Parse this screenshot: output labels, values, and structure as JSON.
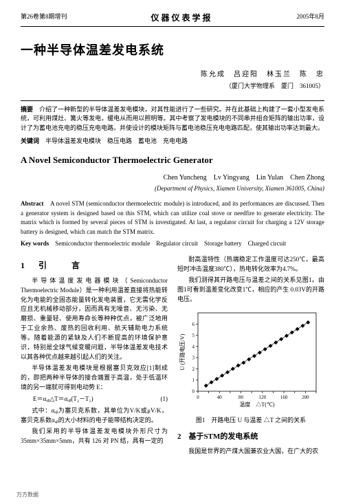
{
  "header": {
    "left": "第26卷第8期增刊",
    "center": "仪器仪表学报",
    "right": "2005年8月"
  },
  "title_cn": "一种半导体温差发电系统",
  "authors_cn": "陈允成　吕迎阳　林玉兰　陈　忠",
  "affil_cn": "（厦门大学物理系　厦门　361005）",
  "abstract_cn_label": "摘要",
  "abstract_cn": "介绍了一种新型的半导体温差发电模块，对其性能进行了一些研究。并在此基础上构建了一套小型发电系统，可利用煤灶、篝火等发电，缓电从而用以照明等。其中考察了发电模块的不同串并组合矩阵的输出功率，设计了为蓄电池充电的稳压充电电路。并使设计的模块矩阵与蓄电池稳压充电电路匹配，使其输出功率达到最大。",
  "keywords_cn_label": "关键词",
  "keywords_cn": "半导体温差发电模块　稳压电路　蓄电池　充电电路",
  "title_en": "A Novel Semiconductor Thermoelectric Generator",
  "authors_en": "Chen Yuncheng　Lv Yingyang　Lin Yulan　Chen Zhong",
  "affil_en": "(Department of Physics, Xiamen University, Xiamen 361005, China)",
  "abstract_en_label": "Abstract",
  "abstract_en": "A novel STM (semiconductor thermoelectric module) is introduced, and its performances are discussed. Then a generator system is designed based on this STM, which can utilize coal stove or needfire to generate electricity. The matrix which is formed by several pieces of STM is investigated. At last, a regulator circuit for charging a 12V storage battery is designed, which can match the STM matrix.",
  "keywords_en_label": "Key words",
  "keywords_en": "Semiconductor thermoelectric module　Regulator circuit　Storage battery　Charged circuit",
  "sec1_heading": "1　引　　言",
  "col_left_p1": "半导体温度发电器模块（Semiconductor Thermoelectric Module）是一种利用温差直接将热能转化为电能的全固态能量转化发电装置，它无需化学反应且无机械移动部分，因而具有无噪音、无污染、无磨损、重量轻、使用寿命长等种种优点，被广泛地用于工业余热、废热的回收利用、航天辅助电力系统等。随着能源的紧缺及人们不断提高的环境保护意识，特别是全球气候变暖问题，半导体温差发电技术以其各种优点越来越引起人们的关注。",
  "col_left_p2": "半导体温差发电模块是根据塞贝克效应[1]制成的，即把两种半导体的接合端置于高温，处于低温环境的另一端就可得到电动势 E：",
  "eq": "E＝αₐᵦ△T＝αₐᵦ(T₂－T₁)",
  "eq_num": "(1)",
  "col_left_p3": "式中：αₐᵦ为塞贝克系数，其单位为V/K或μV/K，塞贝克系数αₐᵦ的大小材料的电子能带结构决定的。",
  "col_left_p4": "我们采用的半导体温差发电模块外形尺寸为35mm×35mm×5mm，共有 126 对 PN 结，具有一定的",
  "col_right_p1": "耐高温特性（热端稳定工作温度可达250℃，最高短时冲击温度380℃），热电转化效率为4.7%。",
  "col_right_p2": "我们测得其开路电压与温差之间的关系见图1。由图1可看到温差变化改变1℃，相应的产生 0.03V的开路电压。",
  "chart": {
    "type": "scatter",
    "xlabel": "温度　△T(℃)",
    "ylabel": "U (开路电压/V)",
    "xlim": [
      0,
      220
    ],
    "ylim": [
      0,
      7
    ],
    "xticks": [
      0,
      20,
      40,
      60,
      80,
      100,
      120,
      140,
      160,
      180,
      200,
      220
    ],
    "yticks": [
      0,
      1,
      2,
      3,
      4,
      5,
      6
    ],
    "xtick_labels": [
      "0",
      "",
      "40",
      "",
      "80",
      "",
      "120",
      "",
      "160",
      "",
      "200",
      ""
    ],
    "ytick_labels": [
      "0",
      "1",
      "2",
      "3",
      "4",
      "5",
      "6"
    ],
    "points_x": [
      15,
      25,
      35,
      45,
      55,
      65,
      75,
      85,
      95,
      105,
      115,
      125,
      135,
      145,
      155,
      165,
      175,
      185,
      195,
      205
    ],
    "points_y": [
      0.5,
      0.8,
      1.1,
      1.4,
      1.7,
      2.0,
      2.3,
      2.55,
      2.85,
      3.15,
      3.45,
      3.75,
      4.05,
      4.35,
      4.65,
      4.95,
      5.25,
      5.55,
      5.85,
      6.15
    ],
    "marker": "diamond",
    "marker_size": 3,
    "marker_color": "#000000",
    "line_color": "#000000",
    "line_width": 0.7,
    "axis_color": "#000000",
    "tick_fontsize": 7,
    "label_fontsize": 8
  },
  "fig1_caption": "图1　开路电压 U 与温差 △T 之间的关系",
  "sec2_heading": "2　基于STM的发电系统",
  "col_right_p3": "我国是世界的产煤大国兼农业大国，在广大的农",
  "footer": "万方数据"
}
